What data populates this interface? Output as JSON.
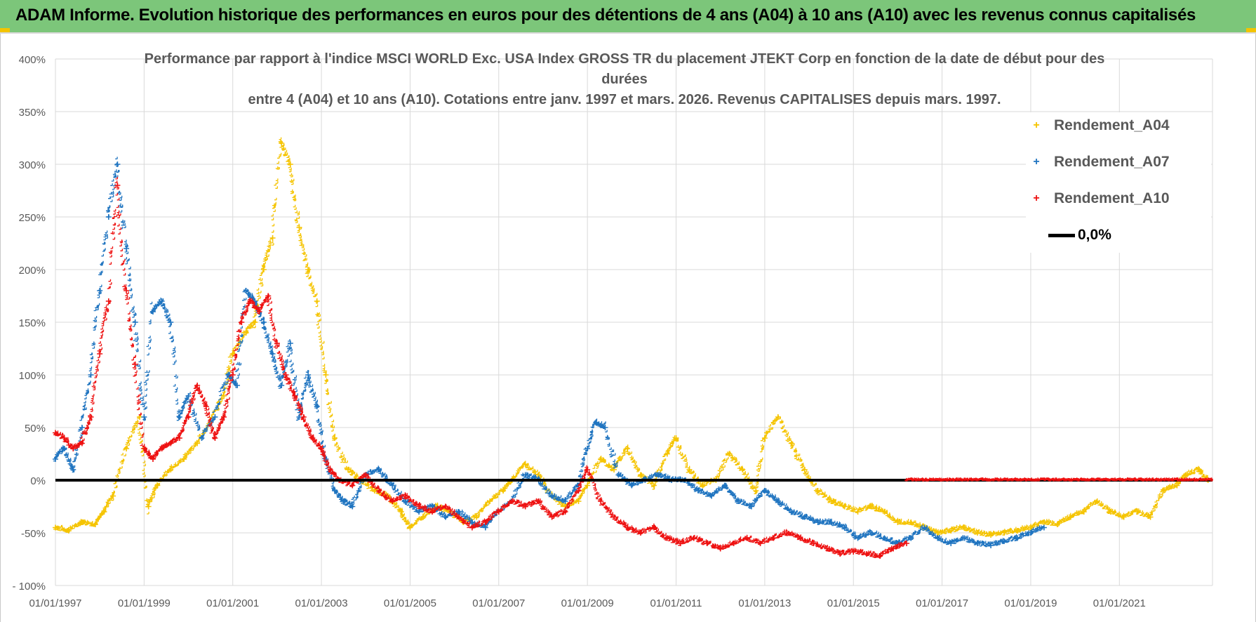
{
  "banner": {
    "title": "ADAM Informe. Evolution historique des performances en euros pour des détentions de 4 ans (A04) à 10 ans (A10) avec les revenus connus capitalisés"
  },
  "colors": {
    "banner_bg": "#7cc67a",
    "a04": "#f5c400",
    "a07": "#1f74c0",
    "a10": "#ee1111",
    "zero": "#000000",
    "grid": "#d9d9d9",
    "text": "#595959"
  },
  "chart_data": {
    "type": "scatter",
    "title_lines": [
      "Performance par rapport à l'indice MSCI WORLD Exc. USA Index GROSS TR  du placement JTEKT Corp en fonction de la date de début pour des",
      "durées",
      "entre 4 (A04) et 10 ans (A10).  Cotations entre janv. 1997 et mars. 2026.  Revenus CAPITALISES depuis mars. 1997."
    ],
    "x_range": [
      1997.0,
      2023.1
    ],
    "ylim": [
      -100,
      400
    ],
    "y_ticks": [
      400,
      350,
      300,
      250,
      200,
      150,
      100,
      50,
      0,
      -50,
      -100
    ],
    "y_tick_labels": [
      "400%",
      "350%",
      "300%",
      "250%",
      "200%",
      "150%",
      "100%",
      "50%",
      "0%",
      "-50%",
      "- 100%"
    ],
    "x_ticks": [
      1997,
      1999,
      2001,
      2003,
      2005,
      2007,
      2009,
      2011,
      2013,
      2015,
      2017,
      2019,
      2021
    ],
    "x_tick_labels": [
      "01/01/1997",
      "01/01/1999",
      "01/01/2001",
      "01/01/2003",
      "01/01/2005",
      "01/01/2007",
      "01/01/2009",
      "01/01/2011",
      "01/01/2013",
      "01/01/2015",
      "01/01/2017",
      "01/01/2019",
      "01/01/2021"
    ],
    "legend": {
      "a04": "Rendement_A04",
      "a07": "Rendement_A07",
      "a10": "Rendement_A10",
      "zero": "0,0%"
    },
    "series": [
      {
        "name": "Rendement_A04",
        "color": "#f5c400",
        "x": [
          1997.0,
          1997.3,
          1997.6,
          1997.9,
          1998.1,
          1998.3,
          1998.6,
          1998.9,
          1999.1,
          1999.3,
          1999.6,
          1999.9,
          2000.2,
          2000.5,
          2000.8,
          2001.0,
          2001.3,
          2001.5,
          2001.7,
          2001.9,
          2002.1,
          2002.3,
          2002.5,
          2002.7,
          2002.9,
          2003.1,
          2003.3,
          2003.6,
          2003.9,
          2004.2,
          2004.5,
          2004.8,
          2005.0,
          2005.3,
          2005.6,
          2005.9,
          2006.2,
          2006.5,
          2006.8,
          2007.1,
          2007.3,
          2007.6,
          2007.9,
          2008.2,
          2008.5,
          2008.8,
          2009.0,
          2009.3,
          2009.6,
          2009.9,
          2010.2,
          2010.5,
          2010.8,
          2011.0,
          2011.3,
          2011.6,
          2011.9,
          2012.2,
          2012.5,
          2012.8,
          2013.0,
          2013.3,
          2013.6,
          2013.9,
          2014.2,
          2014.5,
          2014.8,
          2015.1,
          2015.4,
          2015.7,
          2016.0,
          2016.3,
          2016.6,
          2016.9,
          2017.2,
          2017.5,
          2017.8,
          2018.1,
          2018.4,
          2018.7,
          2019.0,
          2019.3,
          2019.6,
          2019.9,
          2020.2,
          2020.5,
          2020.8,
          2021.1,
          2021.4,
          2021.7,
          2022.0,
          2022.3,
          2022.5,
          2022.8,
          2023.0
        ],
        "y": [
          -45,
          -48,
          -40,
          -42,
          -30,
          -15,
          30,
          60,
          -25,
          -5,
          10,
          20,
          35,
          55,
          80,
          120,
          140,
          150,
          200,
          230,
          320,
          300,
          240,
          200,
          170,
          100,
          40,
          10,
          0,
          -10,
          -15,
          -30,
          -45,
          -35,
          -25,
          -30,
          -40,
          -35,
          -20,
          -10,
          0,
          15,
          5,
          -15,
          -25,
          -20,
          -5,
          20,
          10,
          30,
          5,
          -5,
          25,
          40,
          10,
          -5,
          0,
          25,
          10,
          -10,
          40,
          60,
          35,
          10,
          -10,
          -20,
          -25,
          -30,
          -25,
          -30,
          -40,
          -40,
          -45,
          -50,
          -48,
          -45,
          -50,
          -52,
          -50,
          -48,
          -45,
          -40,
          -42,
          -35,
          -30,
          -20,
          -30,
          -35,
          -30,
          -35,
          -10,
          -5,
          5,
          10,
          0
        ]
      },
      {
        "name": "Rendement_A07",
        "color": "#1f74c0",
        "x": [
          1997.0,
          1997.2,
          1997.4,
          1997.6,
          1997.8,
          1998.0,
          1998.2,
          1998.4,
          1998.6,
          1998.8,
          1999.0,
          1999.2,
          1999.4,
          1999.6,
          1999.8,
          2000.0,
          2000.3,
          2000.6,
          2000.9,
          2001.1,
          2001.3,
          2001.5,
          2001.7,
          2001.9,
          2002.1,
          2002.3,
          2002.5,
          2002.7,
          2002.9,
          2003.1,
          2003.3,
          2003.5,
          2003.7,
          2004.0,
          2004.3,
          2004.6,
          2004.9,
          2005.2,
          2005.5,
          2005.8,
          2006.1,
          2006.4,
          2006.7,
          2007.0,
          2007.3,
          2007.6,
          2007.9,
          2008.2,
          2008.5,
          2008.8,
          2009.0,
          2009.2,
          2009.4,
          2009.7,
          2010.0,
          2010.3,
          2010.6,
          2010.9,
          2011.2,
          2011.5,
          2011.8,
          2012.1,
          2012.4,
          2012.7,
          2013.0,
          2013.3,
          2013.6,
          2013.9,
          2014.2,
          2014.5,
          2014.8,
          2015.1,
          2015.4,
          2015.7,
          2016.0,
          2016.3,
          2016.6,
          2016.9,
          2017.2,
          2017.5,
          2017.8,
          2018.1,
          2018.4,
          2018.7,
          2019.0,
          2019.3
        ],
        "y": [
          20,
          30,
          10,
          50,
          100,
          180,
          250,
          300,
          220,
          150,
          60,
          160,
          170,
          150,
          60,
          80,
          40,
          60,
          100,
          90,
          180,
          170,
          150,
          120,
          90,
          130,
          60,
          100,
          70,
          20,
          -10,
          -20,
          -25,
          5,
          10,
          -5,
          -20,
          -30,
          -25,
          -35,
          -30,
          -40,
          -45,
          -30,
          -20,
          5,
          0,
          -15,
          -20,
          -5,
          30,
          55,
          50,
          5,
          -5,
          0,
          5,
          0,
          0,
          -10,
          -15,
          -5,
          -20,
          -25,
          -10,
          -20,
          -30,
          -35,
          -40,
          -40,
          -45,
          -55,
          -50,
          -55,
          -60,
          -55,
          -45,
          -55,
          -60,
          -55,
          -60,
          -62,
          -58,
          -55,
          -50,
          -45
        ]
      },
      {
        "name": "Rendement_A10",
        "color": "#ee1111",
        "x": [
          1997.0,
          1997.2,
          1997.4,
          1997.6,
          1997.8,
          1998.0,
          1998.2,
          1998.4,
          1998.6,
          1998.8,
          1999.0,
          1999.2,
          1999.4,
          1999.6,
          1999.8,
          2000.0,
          2000.2,
          2000.4,
          2000.6,
          2000.8,
          2001.0,
          2001.2,
          2001.4,
          2001.6,
          2001.8,
          2002.0,
          2002.2,
          2002.4,
          2002.6,
          2002.8,
          2003.0,
          2003.2,
          2003.4,
          2003.7,
          2004.0,
          2004.3,
          2004.6,
          2004.9,
          2005.2,
          2005.5,
          2005.8,
          2006.1,
          2006.4,
          2006.7,
          2007.0,
          2007.3,
          2007.6,
          2007.9,
          2008.2,
          2008.5,
          2008.8,
          2009.0,
          2009.3,
          2009.6,
          2009.9,
          2010.2,
          2010.5,
          2010.8,
          2011.1,
          2011.4,
          2011.7,
          2012.0,
          2012.3,
          2012.6,
          2012.9,
          2013.2,
          2013.5,
          2013.8,
          2014.1,
          2014.4,
          2014.7,
          2015.0,
          2015.3,
          2015.6,
          2015.9,
          2016.2
        ],
        "y": [
          45,
          40,
          30,
          35,
          60,
          120,
          170,
          280,
          180,
          110,
          30,
          20,
          30,
          35,
          40,
          60,
          90,
          70,
          40,
          60,
          100,
          150,
          170,
          160,
          175,
          130,
          100,
          80,
          60,
          40,
          30,
          10,
          0,
          -5,
          5,
          -10,
          -20,
          -15,
          -25,
          -30,
          -25,
          -35,
          -45,
          -40,
          -30,
          -20,
          -25,
          -20,
          -35,
          -30,
          -10,
          10,
          -20,
          -35,
          -45,
          -50,
          -45,
          -55,
          -60,
          -55,
          -60,
          -65,
          -60,
          -55,
          -60,
          -55,
          -50,
          -55,
          -60,
          -65,
          -70,
          -68,
          -70,
          -72,
          -65,
          -60
        ]
      },
      {
        "name": "0,0%",
        "color": "#000000",
        "x": [
          1997.0,
          2023.1
        ],
        "y": [
          0,
          0
        ]
      }
    ]
  }
}
